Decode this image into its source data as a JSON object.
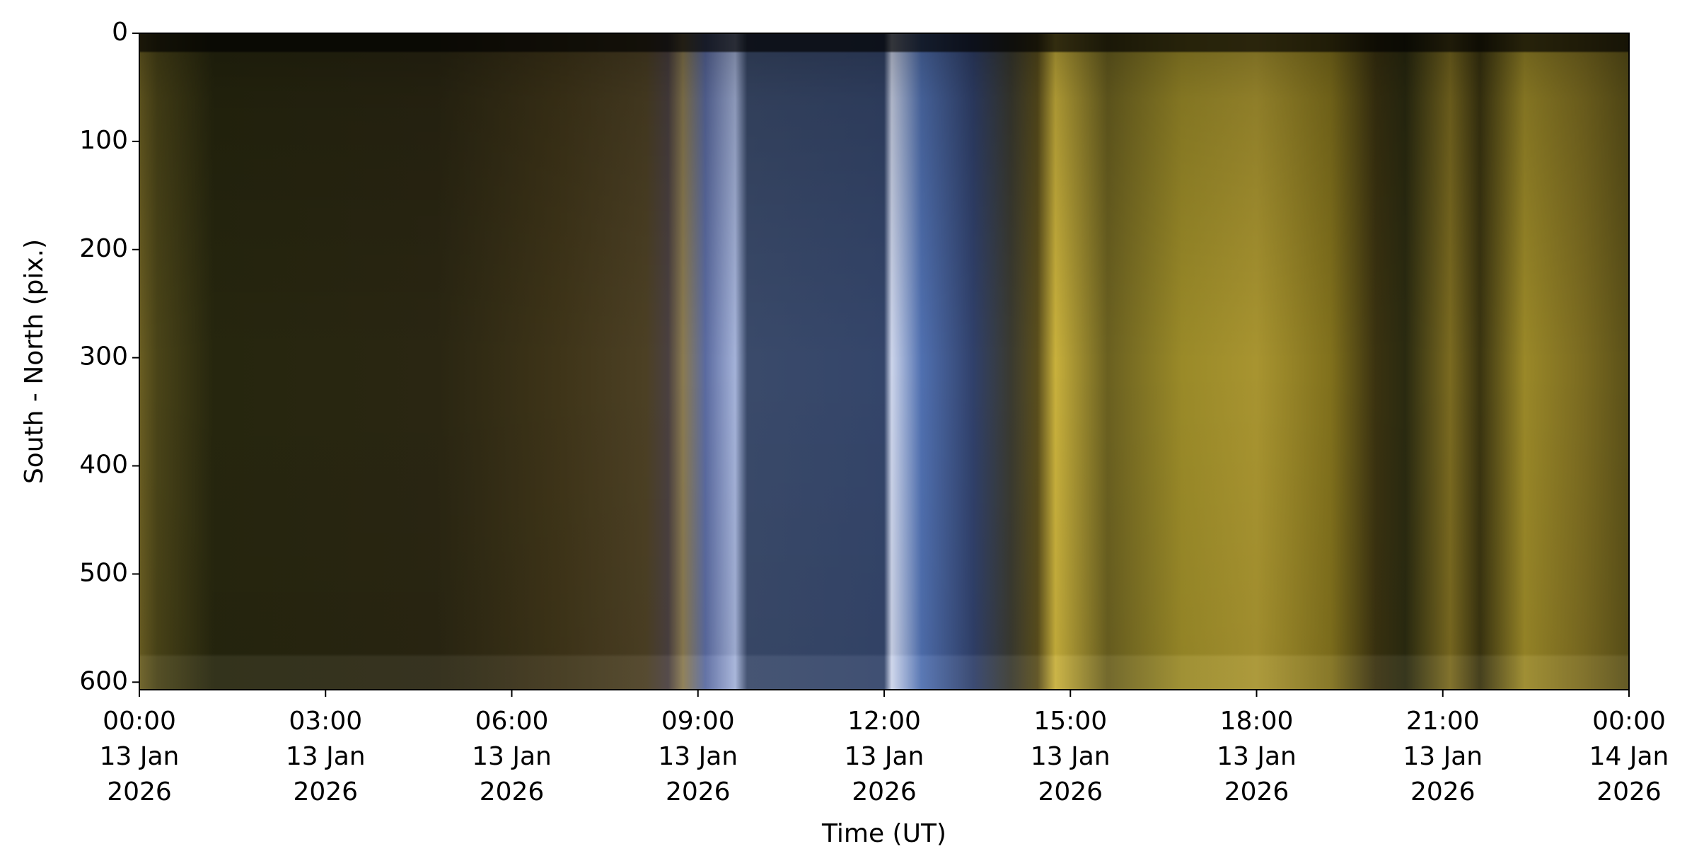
{
  "chart_data": {
    "type": "image",
    "xlabel": "Time (UT)",
    "ylabel": "South - North (pix.)",
    "xlim": [
      "2026-01-13T00:00",
      "2026-01-14T00:00"
    ],
    "xticks": [
      {
        "value": "2026-01-13T00:00",
        "label": "00:00\n13 Jan\n2026"
      },
      {
        "value": "2026-01-13T03:00",
        "label": "03:00\n13 Jan\n2026"
      },
      {
        "value": "2026-01-13T06:00",
        "label": "06:00\n13 Jan\n2026"
      },
      {
        "value": "2026-01-13T09:00",
        "label": "09:00\n13 Jan\n2026"
      },
      {
        "value": "2026-01-13T12:00",
        "label": "12:00\n13 Jan\n2026"
      },
      {
        "value": "2026-01-13T15:00",
        "label": "15:00\n13 Jan\n2026"
      },
      {
        "value": "2026-01-13T18:00",
        "label": "18:00\n13 Jan\n2026"
      },
      {
        "value": "2026-01-13T21:00",
        "label": "21:00\n13 Jan\n2026"
      },
      {
        "value": "2026-01-14T00:00",
        "label": "00:00\n14 Jan\n2026"
      }
    ],
    "ylim": [
      607,
      0
    ],
    "yticks": [
      0,
      100,
      200,
      300,
      400,
      500,
      600
    ]
  }
}
